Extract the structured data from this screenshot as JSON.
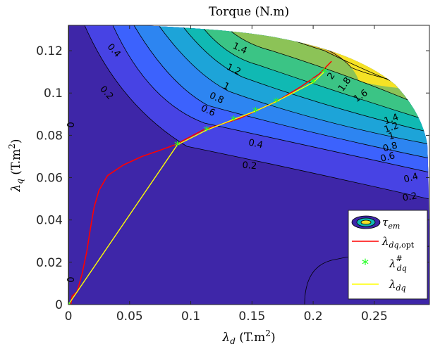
{
  "chart_data": {
    "type": "contour",
    "title": "Torque (N.m)",
    "xlabel": "λd (T.m²)",
    "ylabel": "λq (T.m²)",
    "xlim": [
      0,
      0.295
    ],
    "ylim": [
      0,
      0.132
    ],
    "xticks": [
      "0",
      "0.05",
      "0.1",
      "0.15",
      "0.2",
      "0.25"
    ],
    "xtick_values": [
      0,
      0.05,
      0.1,
      0.15,
      0.2,
      0.25
    ],
    "yticks": [
      "0",
      "0.02",
      "0.04",
      "0.06",
      "0.08",
      "0.1",
      "0.12"
    ],
    "ytick_values": [
      0,
      0.02,
      0.04,
      0.06,
      0.08,
      0.1,
      0.12
    ],
    "grid": false,
    "legend_position": "bottom-right",
    "colormap": [
      "#3e26a8",
      "#4743e4",
      "#3c62fd",
      "#2d85f1",
      "#1da4d8",
      "#10b9b3",
      "#3bc485",
      "#8cc357",
      "#d5ba32",
      "#fdbe3d",
      "#f5e225"
    ],
    "contour_levels": [
      "0",
      "0.2",
      "0.4",
      "0.6",
      "0.8",
      "1",
      "1.2",
      "1.4",
      "1.6",
      "1.8",
      "2"
    ],
    "contour_label_list": [
      {
        "text": "0.4",
        "x": 0.037,
        "y": 0.12,
        "rot": 48
      },
      {
        "text": "0.2",
        "x": 0.031,
        "y": 0.1,
        "rot": 48
      },
      {
        "text": "0",
        "x": 0.001,
        "y": 0.085,
        "rot": 90
      },
      {
        "text": "1.4",
        "x": 0.14,
        "y": 0.121,
        "rot": 25
      },
      {
        "text": "1.2",
        "x": 0.135,
        "y": 0.111,
        "rot": 25
      },
      {
        "text": "1",
        "x": 0.129,
        "y": 0.103,
        "rot": 25
      },
      {
        "text": "0.8",
        "x": 0.121,
        "y": 0.0975,
        "rot": 25
      },
      {
        "text": "0.6",
        "x": 0.114,
        "y": 0.0915,
        "rot": 25
      },
      {
        "text": "0.4",
        "x": 0.153,
        "y": 0.0758,
        "rot": 12
      },
      {
        "text": "0.2",
        "x": 0.148,
        "y": 0.0655,
        "rot": 5
      },
      {
        "text": "2",
        "x": 0.215,
        "y": 0.108,
        "rot": -55
      },
      {
        "text": "1.8",
        "x": 0.226,
        "y": 0.104,
        "rot": -55
      },
      {
        "text": "1.6",
        "x": 0.239,
        "y": 0.0985,
        "rot": -35
      },
      {
        "text": "1.4",
        "x": 0.264,
        "y": 0.0875,
        "rot": -20
      },
      {
        "text": "1.2",
        "x": 0.264,
        "y": 0.0835,
        "rot": -20
      },
      {
        "text": "1",
        "x": 0.264,
        "y": 0.0795,
        "rot": -15
      },
      {
        "text": "0.8",
        "x": 0.263,
        "y": 0.0743,
        "rot": -15
      },
      {
        "text": "0.6",
        "x": 0.261,
        "y": 0.0695,
        "rot": -15
      },
      {
        "text": "0.4",
        "x": 0.28,
        "y": 0.0597,
        "rot": -15
      },
      {
        "text": "0.2",
        "x": 0.279,
        "y": 0.0507,
        "rot": -10
      },
      {
        "text": "0",
        "x": 0.001,
        "y": 0.0118,
        "rot": 90
      }
    ],
    "series": [
      {
        "name": "λdq,opt",
        "color": "#ff0000",
        "x": [
          0.002,
          0.003,
          0.007,
          0.011,
          0.015,
          0.018,
          0.021,
          0.025,
          0.032,
          0.045,
          0.06,
          0.075,
          0.087,
          0.11,
          0.14,
          0.17,
          0.19,
          0.205,
          0.215
        ],
        "y": [
          0.0,
          0.004,
          0.006,
          0.014,
          0.025,
          0.036,
          0.046,
          0.054,
          0.061,
          0.066,
          0.07,
          0.073,
          0.0755,
          0.0825,
          0.088,
          0.096,
          0.103,
          0.109,
          0.115
        ]
      },
      {
        "name": "λdq#",
        "color": "#22ff22",
        "marker": "*",
        "x": [
          0.0,
          0.089,
          0.113,
          0.135,
          0.153,
          0.17,
          0.2,
          0.209
        ],
        "y": [
          0.0,
          0.0755,
          0.0825,
          0.0875,
          0.0915,
          0.096,
          0.105,
          0.11
        ]
      },
      {
        "name": "λdq",
        "color": "#ffff00",
        "x": [
          0.0,
          0.089,
          0.113,
          0.135,
          0.153,
          0.17,
          0.2,
          0.209
        ],
        "y": [
          0.0,
          0.0755,
          0.0825,
          0.0875,
          0.0915,
          0.096,
          0.105,
          0.11
        ]
      }
    ]
  },
  "legend": {
    "tau_label": "τem",
    "opt_label": "λdq,opt",
    "hash_label": "λdq#",
    "lam_label": "λdq"
  }
}
